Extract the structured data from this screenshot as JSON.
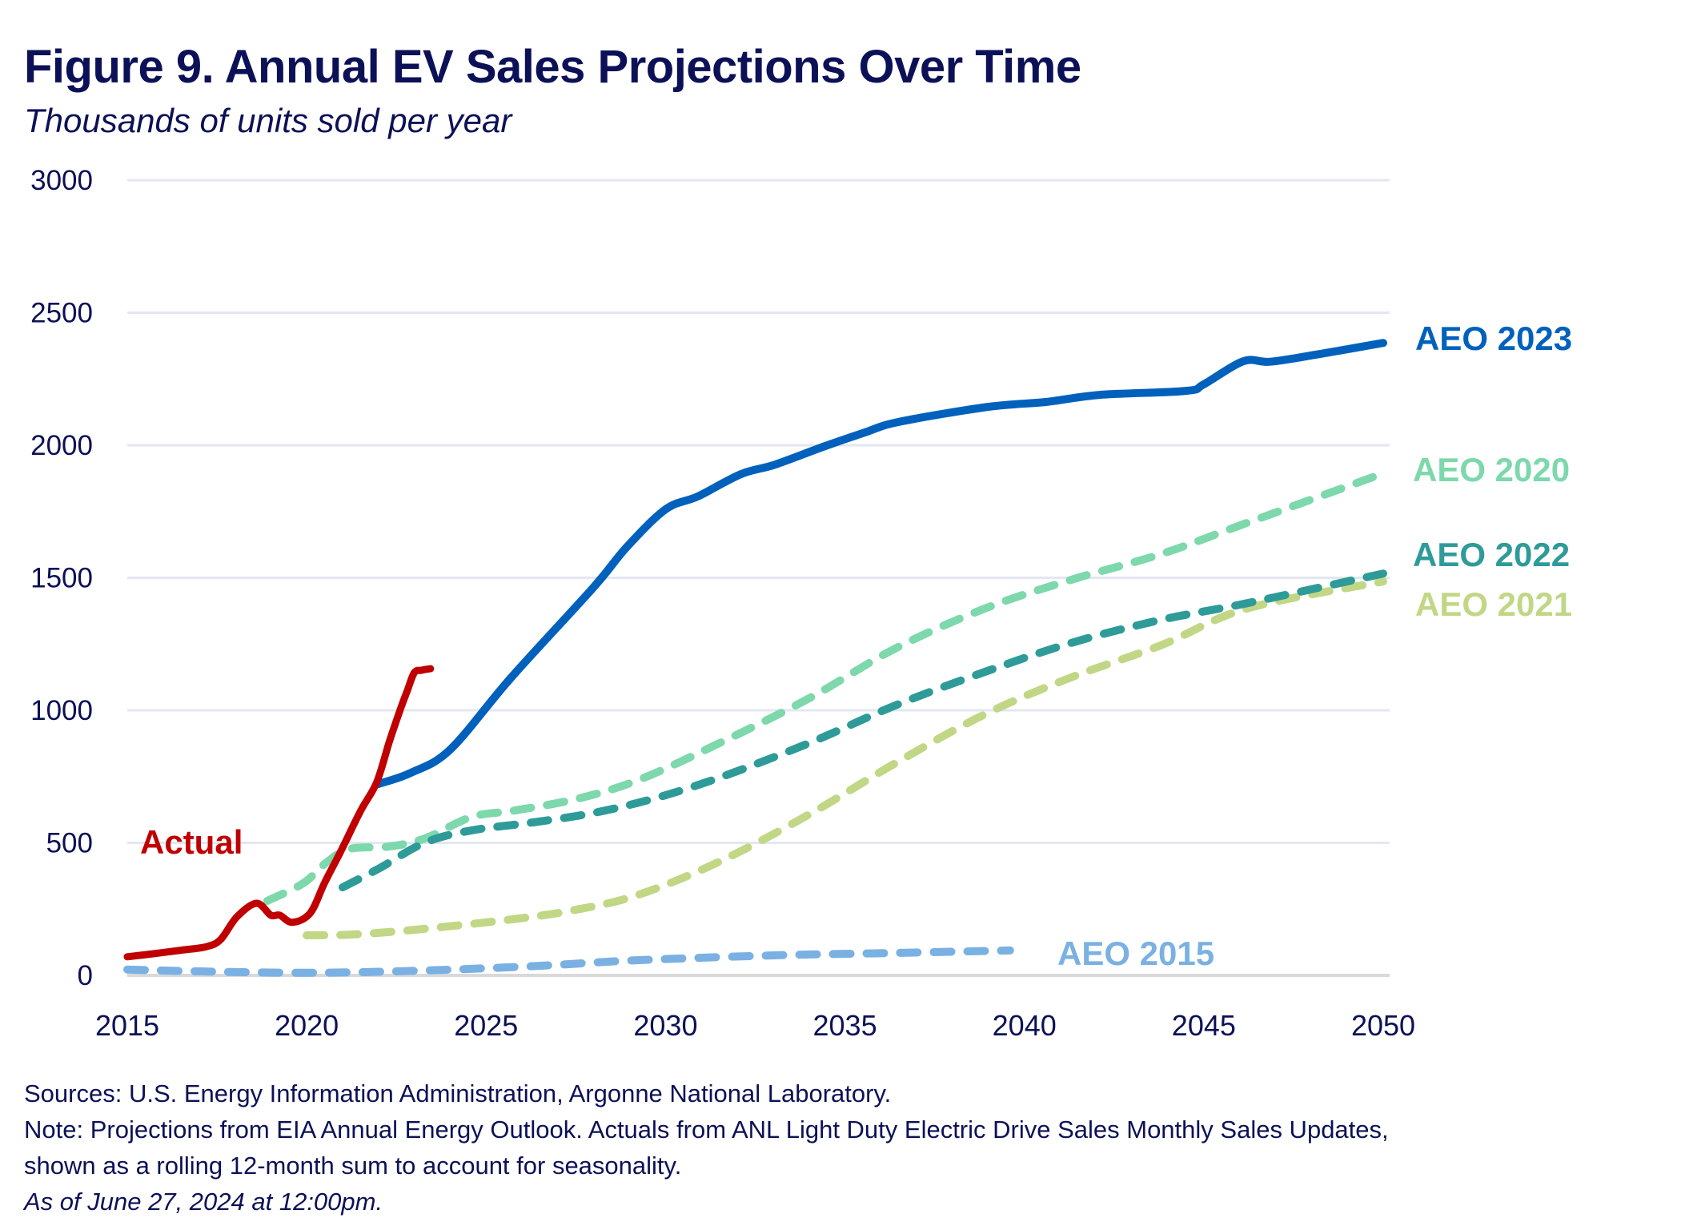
{
  "header": {
    "title": "Figure 9. Annual EV Sales Projections Over Time",
    "subtitle": "Thousands of units sold per year"
  },
  "footer": {
    "sources": "Sources: U.S. Energy Information Administration, Argonne National Laboratory.",
    "note_line1": "Note: Projections from EIA Annual Energy Outlook. Actuals from ANL Light Duty Electric Drive Sales Monthly Sales Updates,",
    "note_line2": "shown as a rolling 12-month sum to account for seasonality.",
    "as_of": "As of June 27, 2024 at 12:00pm."
  },
  "chart_data": {
    "type": "line",
    "title": "Figure 9. Annual EV Sales Projections Over Time",
    "subtitle": "Thousands of units sold per year",
    "xlabel": "",
    "ylabel": "Thousands of units sold per year",
    "xlim": [
      2015,
      2050
    ],
    "ylim": [
      0,
      3000
    ],
    "x_ticks": [
      "2015",
      "2020",
      "2025",
      "2030",
      "2035",
      "2040",
      "2045",
      "2050"
    ],
    "x_tick_values": [
      2015,
      2020,
      2025,
      2030,
      2035,
      2040,
      2045,
      2050
    ],
    "y_ticks": [
      "0",
      "500",
      "1000",
      "1500",
      "2000",
      "2500",
      "3000"
    ],
    "y_tick_values": [
      0,
      500,
      1000,
      1500,
      2000,
      2500,
      3000
    ],
    "grid": "horizontal",
    "legend": "direct labels at line ends",
    "series": [
      {
        "name": "AEO 2015",
        "label": "AEO 2015",
        "color": "#7ab1e2",
        "style": "dashed",
        "label_anchor": "end-right",
        "x": [
          2015,
          2017,
          2019.5,
          2021.5,
          2023.9,
          2026.5,
          2029.2,
          2033.2,
          2036.5,
          2039.6
        ],
        "y": [
          22,
          15,
          10,
          12,
          21,
          36,
          57,
          76,
          85,
          94
        ]
      },
      {
        "name": "AEO 2020",
        "label": "AEO 2020",
        "color": "#7dd8ac",
        "style": "dashed",
        "x": [
          2018.9,
          2019.9,
          2020.55,
          2021.2,
          2022.3,
          2023.3,
          2024.6,
          2025.8,
          2027.6,
          2029.3,
          2031.5,
          2034.0,
          2036.4,
          2038.9,
          2041.3,
          2043.8,
          2046.2,
          2050
        ],
        "y": [
          281,
          347,
          426,
          477,
          486,
          517,
          598,
          622,
          668,
          740,
          876,
          1045,
          1233,
          1384,
          1492,
          1589,
          1707,
          1894
        ]
      },
      {
        "name": "AEO 2021",
        "label": "AEO 2021",
        "color": "#c2d785",
        "style": "dashed",
        "x": [
          2020,
          2021.25,
          2023.0,
          2025.7,
          2027.4,
          2029.2,
          2031.5,
          2034.0,
          2036.4,
          2038.9,
          2041.3,
          2043.8,
          2046.2,
          2050
        ],
        "y": [
          151,
          154,
          172,
          211,
          245,
          302,
          429,
          607,
          800,
          985,
          1124,
          1245,
          1384,
          1486
        ]
      },
      {
        "name": "AEO 2022",
        "label": "AEO 2022",
        "color": "#2e9b99",
        "style": "dashed",
        "x": [
          2021.0,
          2022.0,
          2023.3,
          2024.6,
          2026.3,
          2028.0,
          2029.7,
          2031.5,
          2034.0,
          2036.4,
          2038.9,
          2041.3,
          2043.8,
          2046.2,
          2050
        ],
        "y": [
          332,
          402,
          501,
          547,
          577,
          613,
          668,
          746,
          876,
          1018,
          1145,
          1254,
          1341,
          1404,
          1516
        ]
      },
      {
        "name": "AEO 2023",
        "label": "AEO 2023",
        "color": "#0061bc",
        "style": "solid",
        "x": [
          2022.0,
          2022.9,
          2024.0,
          2025.7,
          2028.0,
          2028.9,
          2030.0,
          2030.9,
          2032.1,
          2033.05,
          2034.45,
          2035.55,
          2036.5,
          2039.0,
          2040.6,
          2042.1,
          2044.5,
          2045.0,
          2046.1,
          2046.85,
          2048.1,
          2050
        ],
        "y": [
          722,
          764,
          852,
          1124,
          1465,
          1613,
          1758,
          1807,
          1891,
          1927,
          1997,
          2048,
          2088,
          2145,
          2163,
          2190,
          2205,
          2230,
          2317,
          2315,
          2341,
          2386
        ]
      },
      {
        "name": "Actual",
        "label": "Actual",
        "color": "#c00000",
        "style": "solid",
        "x": [
          2015.0,
          2015.75,
          2016.5,
          2017.2,
          2017.6,
          2018.05,
          2018.6,
          2019.0,
          2019.25,
          2019.6,
          2020.1,
          2020.5,
          2020.95,
          2021.5,
          2021.95,
          2022.3,
          2022.6,
          2022.8,
          2023.0,
          2023.2,
          2023.45
        ],
        "y": [
          70,
          82,
          95,
          108,
          135,
          220,
          272,
          227,
          227,
          200,
          235,
          350,
          468,
          620,
          728,
          880,
          1000,
          1073,
          1142,
          1151,
          1157
        ]
      }
    ],
    "annotations": [
      "Actual",
      "AEO 2015",
      "AEO 2020",
      "AEO 2021",
      "AEO 2022",
      "AEO 2023"
    ]
  }
}
